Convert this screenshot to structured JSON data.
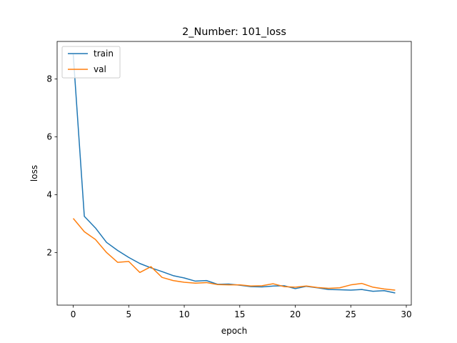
{
  "chart_data": {
    "type": "line",
    "title": "2_Number: 101_loss",
    "xlabel": "epoch",
    "ylabel": "loss",
    "xlim": [
      -1.45,
      30.45
    ],
    "ylim": [
      0.18,
      9.3
    ],
    "xticks": [
      0,
      5,
      10,
      15,
      20,
      25,
      30
    ],
    "yticks": [
      2,
      4,
      6,
      8
    ],
    "grid": false,
    "legend_position": "top-left",
    "x": [
      0,
      1,
      2,
      3,
      4,
      5,
      6,
      7,
      8,
      9,
      10,
      11,
      12,
      13,
      14,
      15,
      16,
      17,
      18,
      19,
      20,
      21,
      22,
      23,
      24,
      25,
      26,
      27,
      28,
      29
    ],
    "series": [
      {
        "name": "train",
        "color": "#1f77b4",
        "values": [
          8.85,
          3.25,
          2.85,
          2.35,
          2.07,
          1.83,
          1.62,
          1.47,
          1.34,
          1.2,
          1.12,
          1.01,
          1.03,
          0.9,
          0.91,
          0.87,
          0.82,
          0.81,
          0.84,
          0.85,
          0.75,
          0.83,
          0.78,
          0.72,
          0.71,
          0.7,
          0.72,
          0.66,
          0.68,
          0.6
        ]
      },
      {
        "name": "val",
        "color": "#ff7f0e",
        "values": [
          3.18,
          2.72,
          2.45,
          2.0,
          1.66,
          1.69,
          1.31,
          1.51,
          1.14,
          1.03,
          0.97,
          0.94,
          0.96,
          0.89,
          0.88,
          0.88,
          0.84,
          0.85,
          0.92,
          0.82,
          0.8,
          0.84,
          0.79,
          0.76,
          0.78,
          0.88,
          0.93,
          0.8,
          0.74,
          0.7
        ]
      }
    ]
  }
}
